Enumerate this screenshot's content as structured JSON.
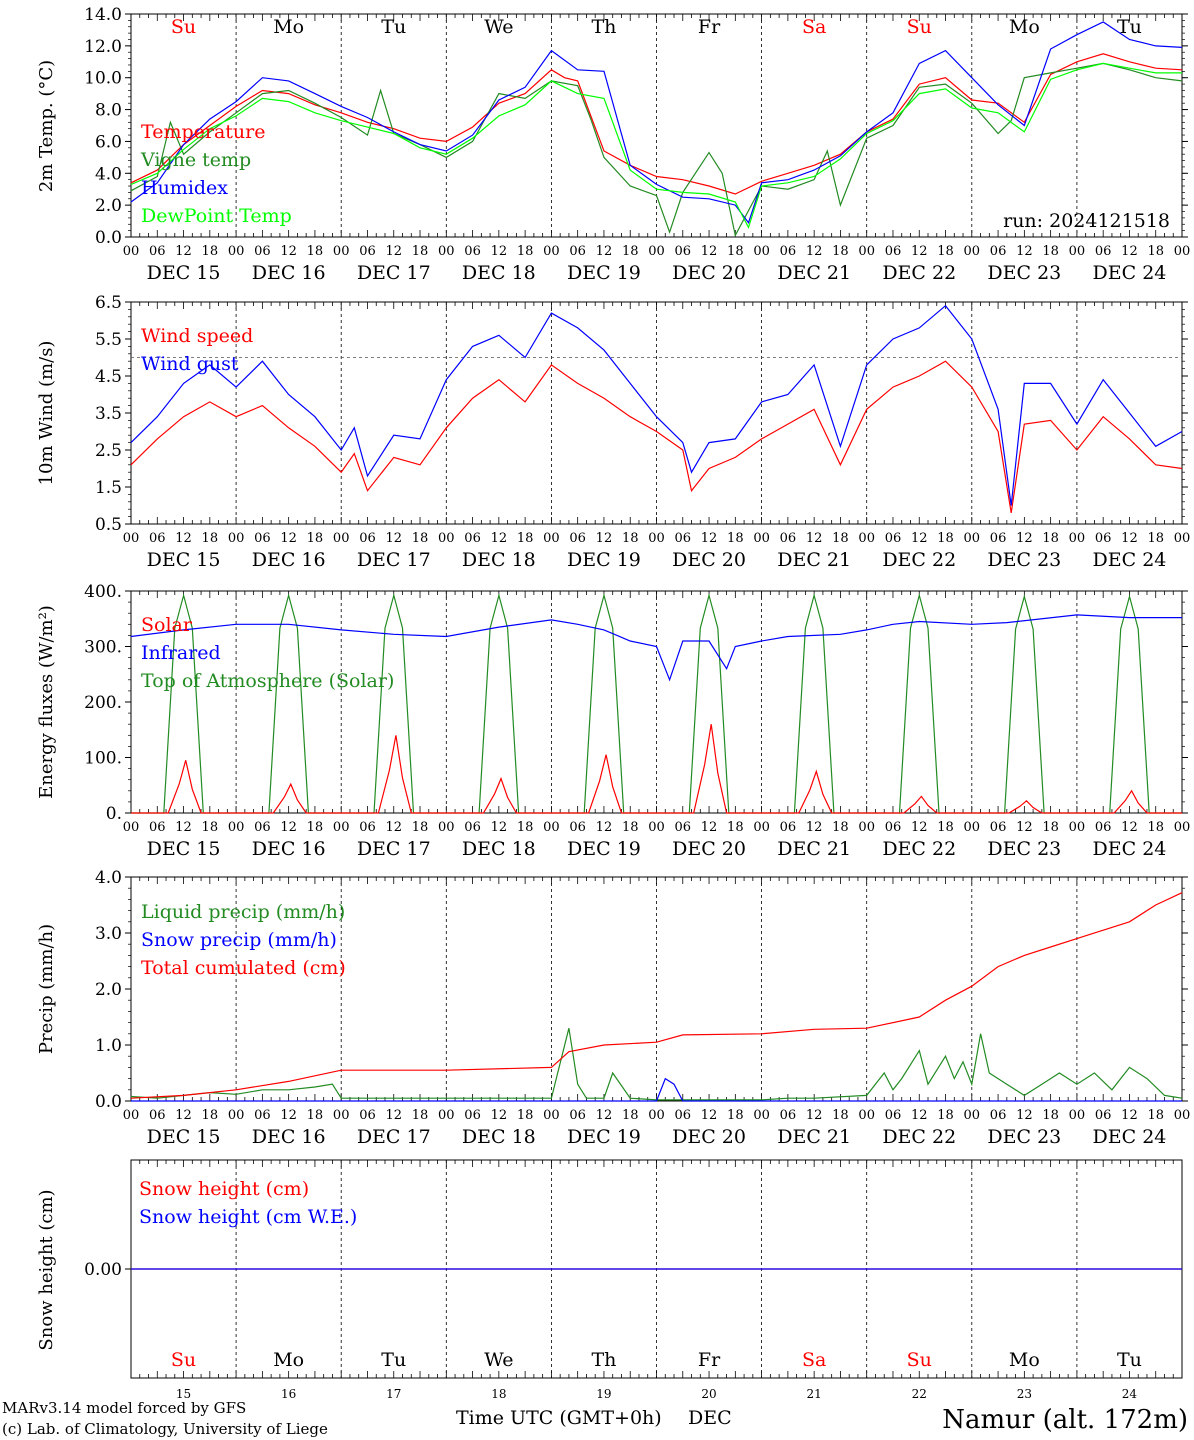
{
  "colors": {
    "red": "#ff0000",
    "green": "#228b22",
    "blue": "#0000ff",
    "lightgreen": "#00ff00",
    "black": "#000000"
  },
  "footer": {
    "model": "MARv3.14 model forced by GFS",
    "copyright": "(c) Lab. of Climatology, University of Liege",
    "xtitle": "Time UTC (GMT+0h)",
    "month": "DEC",
    "station": "Namur (alt. 172m)"
  },
  "run_label": "run: 2024121518",
  "days": {
    "names": [
      "Su",
      "Mo",
      "Tu",
      "We",
      "Th",
      "Fr",
      "Sa",
      "Su",
      "Mo",
      "Tu"
    ],
    "weekend": [
      true,
      false,
      false,
      false,
      false,
      false,
      true,
      true,
      false,
      false
    ],
    "dates": [
      "DEC 15",
      "DEC 16",
      "DEC 17",
      "DEC 18",
      "DEC 19",
      "DEC 20",
      "DEC 21",
      "DEC 22",
      "DEC 23",
      "DEC 24"
    ],
    "numbers": [
      "15",
      "16",
      "17",
      "18",
      "19",
      "20",
      "21",
      "22",
      "23",
      "24"
    ],
    "hour_ticks": [
      "00",
      "06",
      "12",
      "18"
    ],
    "final_tick": "00"
  },
  "chart_data": [
    {
      "type": "line",
      "ylabel": "2m Temp. (°C)",
      "ylim": [
        0,
        14
      ],
      "yticks": [
        "0.0",
        "2.0",
        "4.0",
        "6.0",
        "8.0",
        "10.0",
        "12.0",
        "14.0"
      ],
      "x_unit": "hours since DEC 15 00 UTC",
      "xlim": [
        0,
        240
      ],
      "series": [
        {
          "name": "Temperature",
          "color": "red",
          "x": [
            0,
            6,
            12,
            18,
            24,
            30,
            36,
            42,
            48,
            54,
            60,
            66,
            72,
            78,
            84,
            90,
            96,
            99,
            102,
            108,
            114,
            120,
            126,
            132,
            138,
            144,
            150,
            156,
            162,
            168,
            174,
            180,
            186,
            192,
            198,
            204,
            210,
            216,
            222,
            228,
            234,
            240
          ],
          "y": [
            3.4,
            4.2,
            5.8,
            7.0,
            8.2,
            9.2,
            9.0,
            8.3,
            7.8,
            7.2,
            6.8,
            6.2,
            6.0,
            6.9,
            8.4,
            9.0,
            10.5,
            10.0,
            9.8,
            5.4,
            4.5,
            3.8,
            3.6,
            3.2,
            2.7,
            3.5,
            4.0,
            4.5,
            5.2,
            6.6,
            7.4,
            9.6,
            10.0,
            8.6,
            8.4,
            7.2,
            10.2,
            11.0,
            11.5,
            11.0,
            10.6,
            10.5
          ]
        },
        {
          "name": "Vigne temp",
          "color": "green",
          "x": [
            0,
            6,
            9,
            12,
            18,
            24,
            30,
            36,
            42,
            48,
            54,
            57,
            60,
            66,
            72,
            78,
            84,
            90,
            96,
            102,
            105,
            108,
            114,
            120,
            123,
            126,
            132,
            135,
            138,
            144,
            150,
            156,
            159,
            162,
            168,
            174,
            180,
            186,
            192,
            198,
            201,
            204,
            210,
            216,
            222,
            228,
            234,
            240
          ],
          "y": [
            2.9,
            3.8,
            7.2,
            5.2,
            6.6,
            7.8,
            9.0,
            9.2,
            8.4,
            7.5,
            6.4,
            9.2,
            6.5,
            5.8,
            5.0,
            6.0,
            9.0,
            8.7,
            9.8,
            9.5,
            7.4,
            5.0,
            3.2,
            2.6,
            0.3,
            2.8,
            5.3,
            4.0,
            0.1,
            3.2,
            3.0,
            3.6,
            5.4,
            2.0,
            6.2,
            7.0,
            9.4,
            9.6,
            8.4,
            6.5,
            7.3,
            10.0,
            10.3,
            10.6,
            10.9,
            10.5,
            10.0,
            9.8
          ]
        },
        {
          "name": "Humidex",
          "color": "blue",
          "x": [
            0,
            6,
            12,
            18,
            24,
            30,
            36,
            42,
            48,
            54,
            60,
            66,
            72,
            78,
            84,
            90,
            96,
            102,
            108,
            114,
            120,
            126,
            132,
            138,
            141,
            144,
            150,
            156,
            162,
            168,
            174,
            180,
            186,
            192,
            198,
            204,
            210,
            216,
            222,
            228,
            234,
            240
          ],
          "y": [
            2.2,
            3.4,
            5.8,
            7.4,
            8.5,
            10.0,
            9.8,
            9.0,
            8.2,
            7.5,
            6.6,
            5.8,
            5.4,
            6.4,
            8.6,
            9.4,
            11.7,
            10.5,
            10.4,
            4.5,
            3.3,
            2.5,
            2.4,
            2.0,
            0.9,
            3.4,
            3.6,
            4.2,
            5.1,
            6.6,
            7.8,
            10.9,
            11.7,
            10.0,
            8.3,
            7.0,
            11.8,
            12.7,
            13.5,
            12.4,
            12.0,
            11.9
          ]
        },
        {
          "name": "DewPoint Temp",
          "color": "lightgreen",
          "x": [
            0,
            6,
            12,
            18,
            24,
            30,
            36,
            42,
            48,
            54,
            60,
            66,
            72,
            78,
            84,
            90,
            96,
            102,
            108,
            114,
            120,
            126,
            132,
            138,
            141,
            144,
            150,
            156,
            162,
            168,
            174,
            180,
            186,
            192,
            198,
            204,
            210,
            216,
            222,
            228,
            234,
            240
          ],
          "y": [
            3.3,
            4.0,
            5.5,
            6.8,
            7.6,
            8.7,
            8.5,
            7.8,
            7.3,
            6.9,
            6.5,
            5.6,
            5.2,
            6.2,
            7.6,
            8.3,
            9.8,
            9.0,
            8.7,
            4.2,
            3.0,
            2.8,
            2.7,
            2.2,
            0.6,
            3.2,
            3.4,
            3.8,
            4.9,
            6.5,
            7.3,
            9.0,
            9.3,
            8.1,
            7.8,
            6.6,
            9.9,
            10.5,
            10.9,
            10.6,
            10.3,
            10.3
          ]
        }
      ]
    },
    {
      "type": "line",
      "ylabel": "10m Wind (m/s)",
      "ylim": [
        0.5,
        6.5
      ],
      "yticks": [
        "0.5",
        "1.5",
        "2.5",
        "3.5",
        "4.5",
        "5.5",
        "6.5"
      ],
      "reference_line": 5.0,
      "x_unit": "hours since DEC 15 00 UTC",
      "xlim": [
        0,
        240
      ],
      "series": [
        {
          "name": "Wind speed",
          "color": "red",
          "x": [
            0,
            6,
            12,
            18,
            24,
            30,
            36,
            42,
            48,
            51,
            54,
            60,
            66,
            72,
            78,
            84,
            90,
            96,
            102,
            108,
            114,
            120,
            126,
            128,
            132,
            138,
            144,
            150,
            156,
            162,
            168,
            174,
            180,
            186,
            192,
            198,
            201,
            204,
            210,
            216,
            222,
            228,
            234,
            240
          ],
          "y": [
            2.1,
            2.8,
            3.4,
            3.8,
            3.4,
            3.7,
            3.1,
            2.6,
            1.9,
            2.4,
            1.4,
            2.3,
            2.1,
            3.1,
            3.9,
            4.4,
            3.8,
            4.8,
            4.3,
            3.9,
            3.4,
            3.0,
            2.5,
            1.4,
            2.0,
            2.3,
            2.8,
            3.2,
            3.6,
            2.1,
            3.6,
            4.2,
            4.5,
            4.9,
            4.2,
            3.0,
            0.8,
            3.2,
            3.3,
            2.5,
            3.4,
            2.8,
            2.1,
            2.0
          ]
        },
        {
          "name": "Wind gust",
          "color": "blue",
          "x": [
            0,
            6,
            12,
            18,
            24,
            30,
            36,
            42,
            48,
            51,
            54,
            60,
            66,
            72,
            78,
            84,
            90,
            96,
            102,
            108,
            114,
            120,
            126,
            128,
            132,
            138,
            144,
            150,
            156,
            162,
            168,
            174,
            180,
            186,
            192,
            198,
            201,
            204,
            210,
            216,
            222,
            228,
            234,
            240
          ],
          "y": [
            2.7,
            3.4,
            4.3,
            4.8,
            4.2,
            4.9,
            4.0,
            3.4,
            2.5,
            3.1,
            1.8,
            2.9,
            2.8,
            4.4,
            5.3,
            5.6,
            5.0,
            6.2,
            5.8,
            5.2,
            4.3,
            3.4,
            2.7,
            1.9,
            2.7,
            2.8,
            3.8,
            4.0,
            4.8,
            2.6,
            4.8,
            5.5,
            5.8,
            6.4,
            5.5,
            3.6,
            1.0,
            4.3,
            4.3,
            3.2,
            4.4,
            3.5,
            2.6,
            3.0
          ]
        }
      ]
    },
    {
      "type": "line",
      "ylabel": "Energy fluxes (W/m²)",
      "ylim": [
        0,
        400
      ],
      "yticks": [
        "0.",
        "100.",
        "200.",
        "300.",
        "400."
      ],
      "x_unit": "hours since DEC 15 00 UTC",
      "xlim": [
        0,
        240
      ],
      "solar_noon_peaks": {
        "Solar": [
          95,
          52,
          140,
          62,
          105,
          160,
          75,
          30,
          22,
          40
        ],
        "Top of Atmosphere (Solar)": [
          392,
          392,
          392,
          392,
          392,
          392,
          392,
          392,
          390,
          390
        ]
      },
      "series": [
        {
          "name": "Solar",
          "color": "red",
          "note": "daytime curve each day, zero at night"
        },
        {
          "name": "Infrared",
          "color": "blue",
          "x": [
            0,
            12,
            24,
            36,
            48,
            60,
            72,
            84,
            96,
            102,
            108,
            114,
            120,
            123,
            126,
            132,
            136,
            138,
            144,
            150,
            162,
            168,
            174,
            180,
            192,
            200,
            216,
            228,
            240
          ],
          "y": [
            318,
            330,
            340,
            340,
            330,
            322,
            318,
            335,
            348,
            340,
            330,
            310,
            300,
            240,
            310,
            310,
            260,
            300,
            310,
            318,
            322,
            330,
            340,
            345,
            340,
            343,
            357,
            352,
            352
          ]
        },
        {
          "name": "Top of Atmosphere (Solar)",
          "color": "green",
          "note": "daytime curve each day, zero at night"
        }
      ]
    },
    {
      "type": "line",
      "ylabel": "Precip (mm/h)",
      "ylim": [
        0,
        4
      ],
      "yticks": [
        "0.0",
        "1.0",
        "2.0",
        "3.0",
        "4.0"
      ],
      "x_unit": "hours since DEC 15 00 UTC",
      "xlim": [
        0,
        240
      ],
      "series": [
        {
          "name": "Liquid precip (mm/h)",
          "color": "green",
          "x": [
            0,
            6,
            12,
            18,
            24,
            30,
            36,
            42,
            46,
            48,
            96,
            100,
            102,
            104,
            108,
            110,
            114,
            120,
            144,
            150,
            156,
            168,
            172,
            174,
            176,
            180,
            182,
            186,
            188,
            190,
            192,
            194,
            196,
            200,
            204,
            208,
            212,
            216,
            220,
            224,
            228,
            232,
            236,
            240
          ],
          "y": [
            0.08,
            0.05,
            0.1,
            0.15,
            0.12,
            0.2,
            0.2,
            0.25,
            0.3,
            0.05,
            0.05,
            1.3,
            0.3,
            0.05,
            0.05,
            0.5,
            0.05,
            0.02,
            0.02,
            0.05,
            0.05,
            0.1,
            0.5,
            0.2,
            0.4,
            0.9,
            0.3,
            0.8,
            0.4,
            0.7,
            0.3,
            1.2,
            0.5,
            0.3,
            0.1,
            0.3,
            0.5,
            0.3,
            0.5,
            0.2,
            0.6,
            0.4,
            0.1,
            0.05
          ]
        },
        {
          "name": "Snow precip (mm/h)",
          "color": "blue",
          "x": [
            0,
            120,
            122,
            124,
            126,
            240
          ],
          "y": [
            0,
            0,
            0.4,
            0.3,
            0,
            0
          ]
        },
        {
          "name": "Total cumulated (cm)",
          "color": "red",
          "x": [
            0,
            12,
            24,
            36,
            42,
            48,
            72,
            96,
            100,
            108,
            120,
            126,
            144,
            156,
            168,
            180,
            186,
            192,
            198,
            204,
            210,
            216,
            222,
            228,
            234,
            240
          ],
          "y": [
            0.05,
            0.1,
            0.2,
            0.35,
            0.45,
            0.55,
            0.55,
            0.6,
            0.88,
            1.0,
            1.05,
            1.18,
            1.2,
            1.28,
            1.3,
            1.5,
            1.8,
            2.05,
            2.4,
            2.6,
            2.75,
            2.9,
            3.05,
            3.2,
            3.5,
            3.72
          ]
        }
      ]
    },
    {
      "type": "line",
      "ylabel": "Snow height (cm)",
      "yticks": [
        "0.00"
      ],
      "x_unit": "hours since DEC 15 00 UTC",
      "xlim": [
        0,
        240
      ],
      "series": [
        {
          "name": "Snow height (cm)",
          "color": "red",
          "x": [
            0,
            240
          ],
          "y": [
            0,
            0
          ]
        },
        {
          "name": "Snow height (cm W.E.)",
          "color": "blue",
          "x": [
            0,
            240
          ],
          "y": [
            0,
            0
          ]
        }
      ]
    }
  ]
}
